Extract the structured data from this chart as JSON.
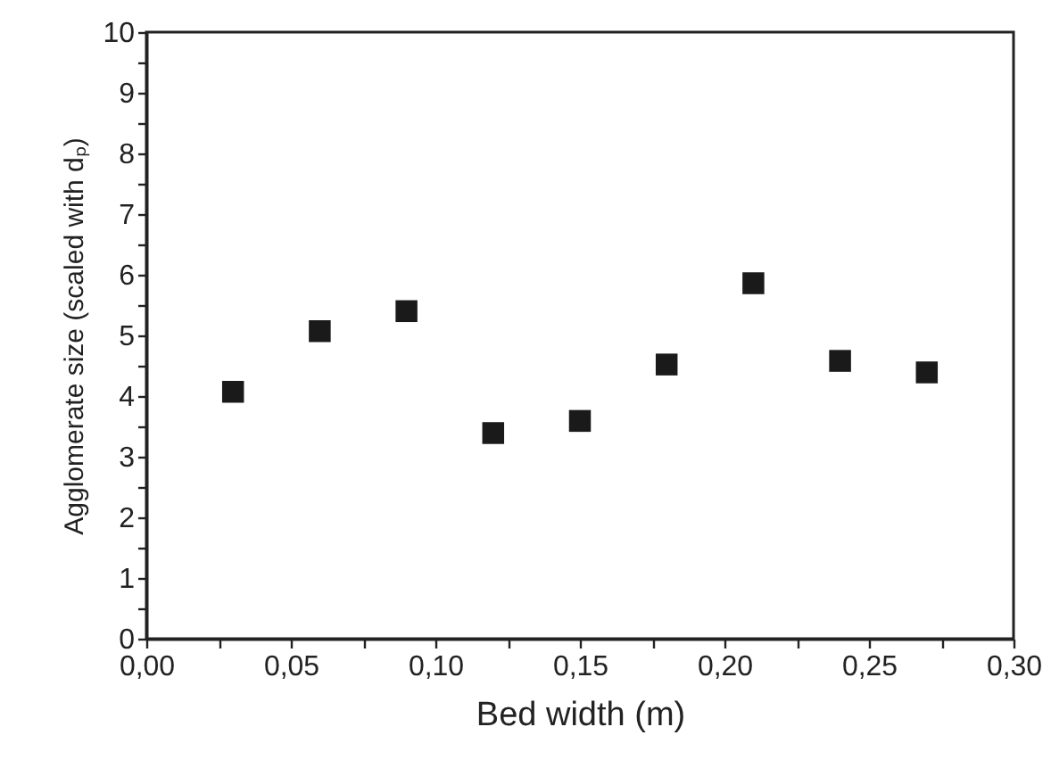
{
  "chart_data": {
    "type": "scatter",
    "xlabel": "Bed width (m)",
    "ylabel": "Agglomerate size (scaled with dₚ)",
    "x": [
      0.03,
      0.06,
      0.09,
      0.12,
      0.15,
      0.18,
      0.21,
      0.24,
      0.27
    ],
    "series": [
      {
        "color": "#1a1a1a",
        "values": [
          4.07,
          5.07,
          5.4,
          3.39,
          3.59,
          4.52,
          5.86,
          4.58,
          4.39
        ]
      }
    ],
    "marker": "square",
    "grid": false,
    "xlim": [
      0,
      0.3
    ],
    "ylim": [
      0,
      10
    ],
    "xticks": [
      {
        "value": 0,
        "label": "0,00"
      },
      {
        "value": 0.025,
        "label": null
      },
      {
        "value": 0.05,
        "label": "0,05"
      },
      {
        "value": 0.075,
        "label": null
      },
      {
        "value": 0.1,
        "label": "0,10"
      },
      {
        "value": 0.125,
        "label": null
      },
      {
        "value": 0.15,
        "label": "0,15"
      },
      {
        "value": 0.175,
        "label": null
      },
      {
        "value": 0.2,
        "label": "0,20"
      },
      {
        "value": 0.225,
        "label": null
      },
      {
        "value": 0.25,
        "label": "0,25"
      },
      {
        "value": 0.275,
        "label": null
      },
      {
        "value": 0.3,
        "label": "0,30"
      }
    ],
    "yticks": [
      0,
      {
        "value": 0.5,
        "label": null
      },
      1,
      {
        "value": 1.5,
        "label": null
      },
      2,
      {
        "value": 2.5,
        "label": null
      },
      3,
      {
        "value": 3.5,
        "label": null
      },
      4,
      {
        "value": 4.5,
        "label": null
      },
      5,
      {
        "value": 5.5,
        "label": null
      },
      6,
      {
        "value": 6.5,
        "label": null
      },
      7,
      {
        "value": 7.5,
        "label": null
      },
      8,
      {
        "value": 8.5,
        "label": null
      },
      9,
      {
        "value": 9.5,
        "label": null
      },
      10
    ]
  }
}
